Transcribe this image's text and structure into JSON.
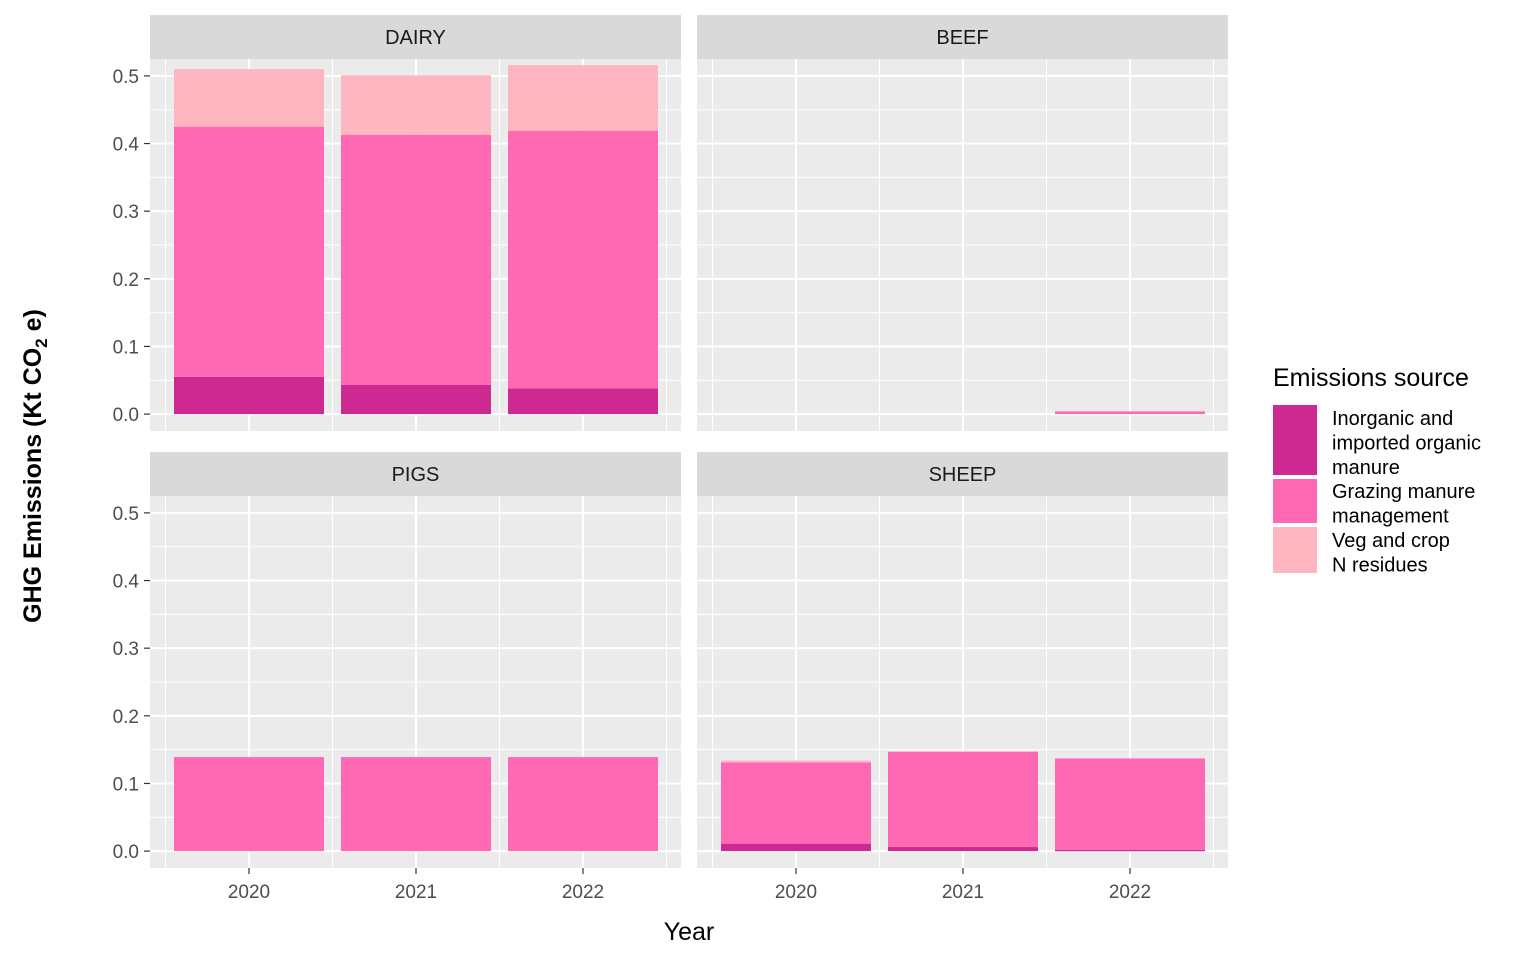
{
  "chart_data": {
    "type": "bar",
    "stacked": true,
    "facets": [
      "DAIRY",
      "BEEF",
      "PIGS",
      "SHEEP"
    ],
    "categories": [
      "2020",
      "2021",
      "2022"
    ],
    "x_tick_labels": [
      "2020",
      "2021",
      "2022"
    ],
    "y_tick_labels": [
      "0.0",
      "0.1",
      "0.2",
      "0.3",
      "0.4",
      "0.5"
    ],
    "ylim": [
      0,
      0.525
    ],
    "xlabel": "Year",
    "ylabel": {
      "prefix": "GHG Emissions (Kt CO",
      "subscript": "2",
      "suffix": " e)"
    },
    "grid": true,
    "legend": {
      "title": "Emissions source",
      "position": "right",
      "entries": [
        {
          "lines": [
            "Inorganic and",
            "imported organic",
            "manure"
          ],
          "color": "#CD2990"
        },
        {
          "lines": [
            "Grazing manure",
            "management"
          ],
          "color": "#FF69B4"
        },
        {
          "lines": [
            "Veg and crop",
            "N residues"
          ],
          "color": "#FFB6C1"
        }
      ]
    },
    "series": [
      {
        "name": "Inorganic and imported organic manure",
        "color": "#CD2990",
        "values": {
          "DAIRY": [
            0.055,
            0.043,
            0.038
          ],
          "BEEF": [
            0,
            0,
            0
          ],
          "PIGS": [
            0,
            0,
            0
          ],
          "SHEEP": [
            0.011,
            0.006,
            0.002
          ]
        }
      },
      {
        "name": "Grazing manure management",
        "color": "#FF69B4",
        "values": {
          "DAIRY": [
            0.37,
            0.37,
            0.381
          ],
          "BEEF": [
            0,
            0,
            0.004
          ],
          "PIGS": [
            0.139,
            0.139,
            0.139
          ],
          "SHEEP": [
            0.12,
            0.141,
            0.135
          ]
        }
      },
      {
        "name": "Veg and crop N residues",
        "color": "#FFB6C1",
        "values": {
          "DAIRY": [
            0.085,
            0.088,
            0.097
          ],
          "BEEF": [
            0,
            0,
            0
          ],
          "PIGS": [
            0,
            0,
            0
          ],
          "SHEEP": [
            0.003,
            0,
            0
          ]
        }
      }
    ]
  }
}
